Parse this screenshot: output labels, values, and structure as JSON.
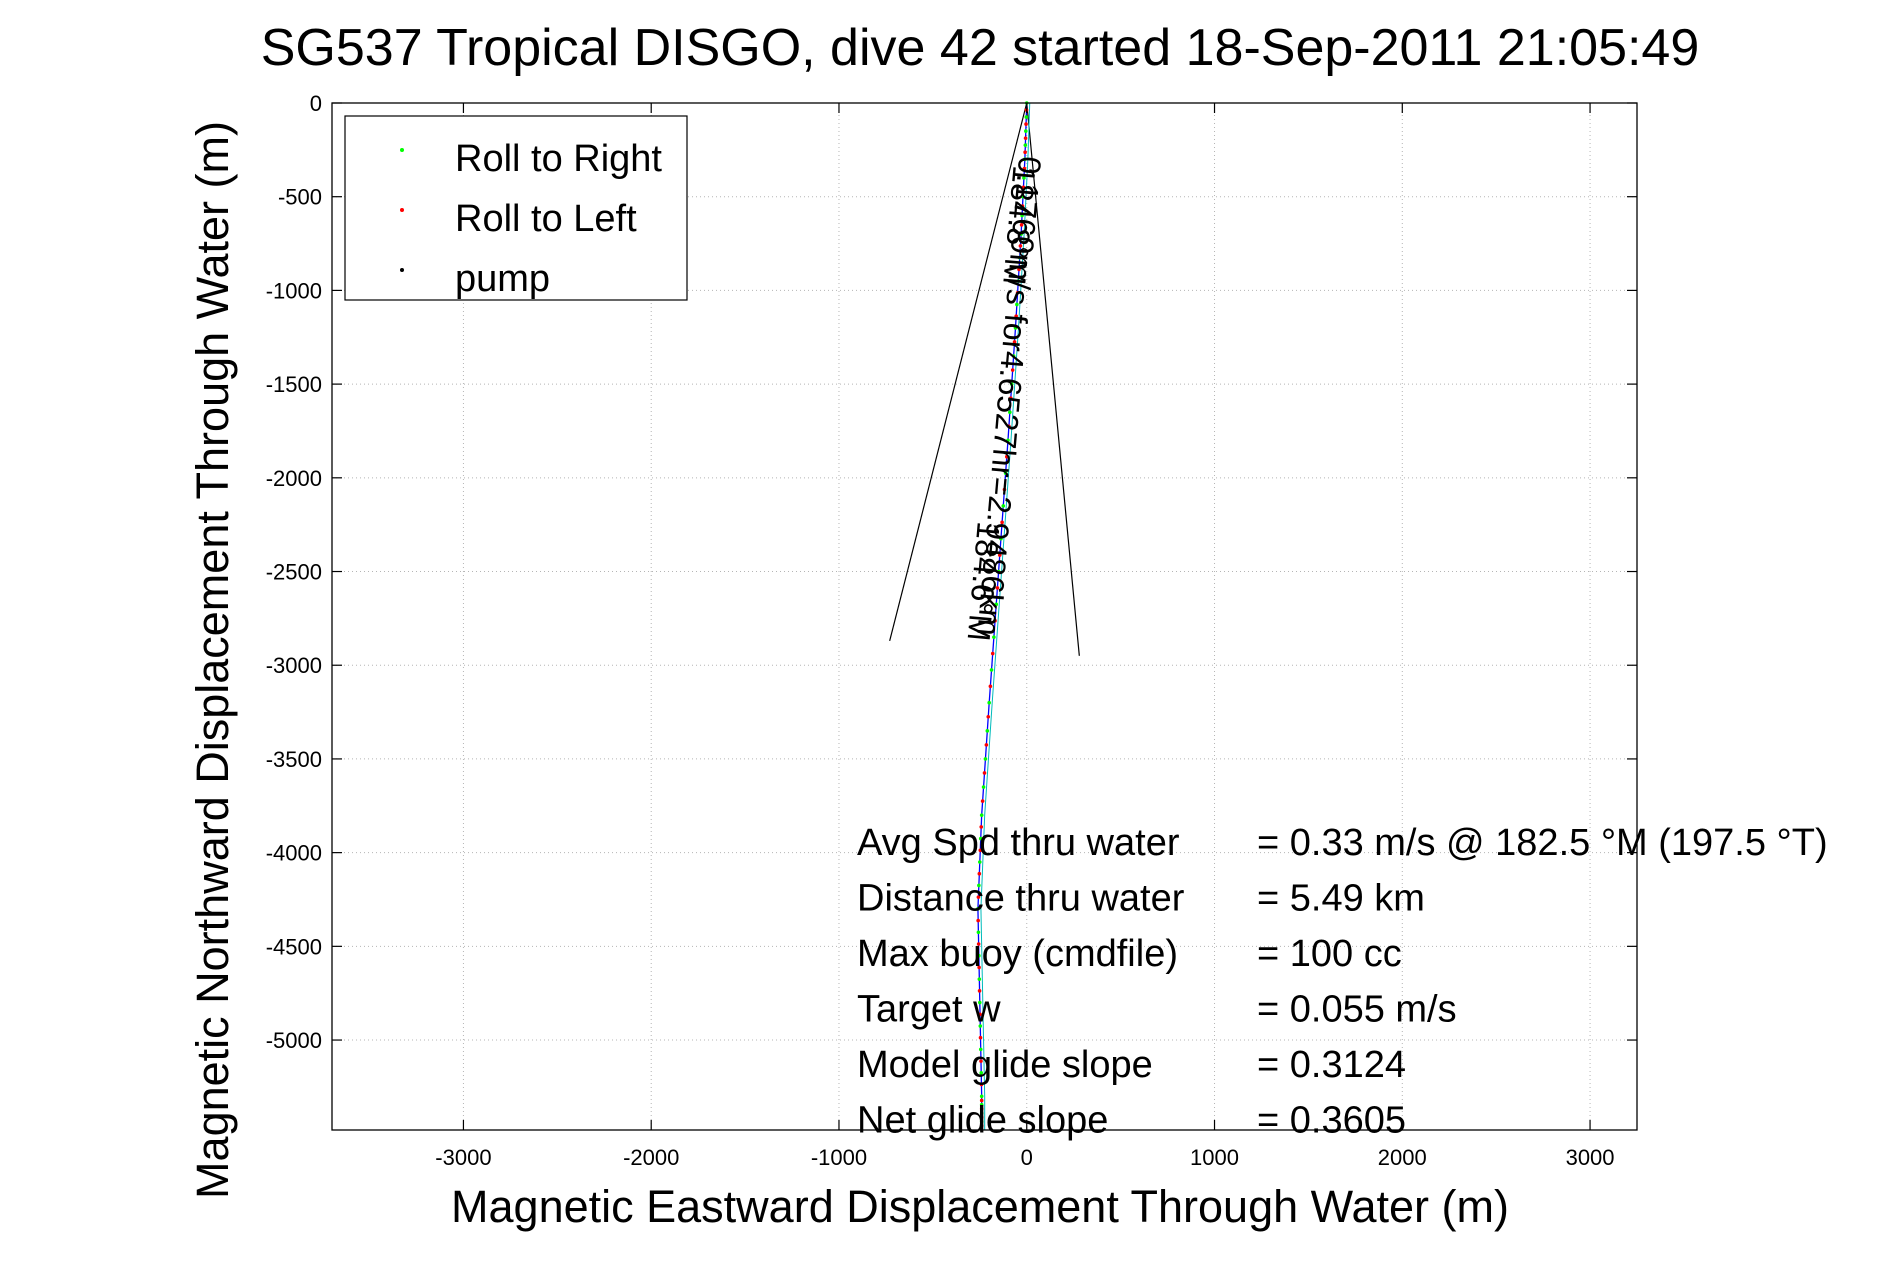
{
  "chart_data": {
    "type": "scatter",
    "title": "SG537 Tropical DISGO, dive 42 started 18-Sep-2011 21:05:49",
    "xlabel": "Magnetic Eastward Displacement Through Water (m)",
    "ylabel": "Magnetic Northward Displacement Through Water (m)",
    "xlim": [
      -3700,
      3250
    ],
    "ylim": [
      -5480,
      0
    ],
    "xticks": [
      -3000,
      -2000,
      -1000,
      0,
      1000,
      2000,
      3000
    ],
    "xtick_labels": [
      "-3000",
      "-2000",
      "-1000",
      "0",
      "1000",
      "2000",
      "3000"
    ],
    "yticks": [
      0,
      -500,
      -1000,
      -1500,
      -2000,
      -2500,
      -3000,
      -3500,
      -4000,
      -4500,
      -5000
    ],
    "ytick_labels": [
      "0",
      "-500",
      "-1000",
      "-1500",
      "-2000",
      "-2500",
      "-3000",
      "-3500",
      "-4000",
      "-4500",
      "-5000"
    ],
    "grid": true,
    "legend_position": "top-left",
    "legend": [
      {
        "name": "Roll to Right",
        "color": "#00ff00"
      },
      {
        "name": "Roll to Left",
        "color": "#ff0000"
      },
      {
        "name": "pump",
        "color": "#000000"
      }
    ],
    "track": [
      {
        "x": 0,
        "y": 0
      },
      {
        "x": -10,
        "y": -300
      },
      {
        "x": -30,
        "y": -700
      },
      {
        "x": -60,
        "y": -1200
      },
      {
        "x": -100,
        "y": -1800
      },
      {
        "x": -150,
        "y": -2500
      },
      {
        "x": -200,
        "y": -3200
      },
      {
        "x": -240,
        "y": -3800
      },
      {
        "x": -260,
        "y": -4300
      },
      {
        "x": -250,
        "y": -4800
      },
      {
        "x": -240,
        "y": -5300
      },
      {
        "x": -240,
        "y": -5480
      }
    ],
    "cone_lines": [
      {
        "x": [
          0,
          -730
        ],
        "y": [
          0,
          -2870
        ]
      },
      {
        "x": [
          0,
          280
        ],
        "y": [
          0,
          -2950
        ]
      }
    ],
    "rotated_labels": [
      {
        "text": "0.1760m/s for4.6527hr=2.9486km",
        "x": -40,
        "y": -280
      },
      {
        "text": "184.8°M",
        "x": -70,
        "y": -330
      },
      {
        "text": "184.6°M",
        "x": -260,
        "y": -2230
      }
    ],
    "annotations": [
      {
        "label": "Avg Spd thru water",
        "value": "=  0.33 m/s @ 182.5 °M (197.5 °T)"
      },
      {
        "label": "Distance thru water",
        "value": "=  5.49 km"
      },
      {
        "label": "Max buoy (cmdfile)",
        "value": "= 100 cc"
      },
      {
        "label": "Target w",
        "value": "= 0.055 m/s"
      },
      {
        "label": "Model glide slope",
        "value": "= 0.3124"
      },
      {
        "label": "Net glide slope",
        "value": "= 0.3605"
      }
    ]
  }
}
